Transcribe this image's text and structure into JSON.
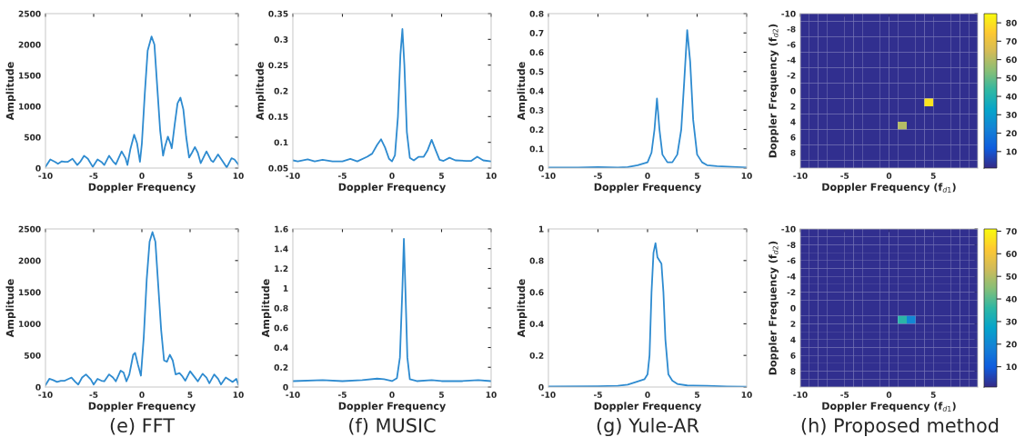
{
  "chart_data": [
    {
      "type": "line",
      "xlabel": "Doppler Frequency",
      "ylabel": "Amplitude",
      "xlim": [
        -10,
        10
      ],
      "xticks": [
        -10,
        -5,
        0,
        5,
        10
      ],
      "ylim": [
        0,
        2500
      ],
      "yticks": [
        0,
        500,
        1000,
        1500,
        2000,
        2500
      ],
      "series": [
        {
          "color": "#2e8bd0",
          "x": [
            -10,
            -9.5,
            -9,
            -8.7,
            -8.3,
            -8,
            -7.7,
            -7.2,
            -6.7,
            -6.4,
            -6,
            -5.6,
            -5.1,
            -4.6,
            -4.2,
            -3.9,
            -3.4,
            -3,
            -2.7,
            -2.1,
            -1.7,
            -1.5,
            -1.2,
            -0.8,
            -0.5,
            -0.2,
            0,
            0.3,
            0.6,
            1,
            1.3,
            1.6,
            1.9,
            2.2,
            2.4,
            2.7,
            3,
            3.1,
            3.4,
            3.7,
            4,
            4.3,
            4.6,
            4.9,
            5.2,
            5.5,
            5.8,
            6.1,
            6.7,
            7.2,
            7.4,
            7.9,
            8.3,
            8.8,
            9.3,
            9.6,
            10
          ],
          "values": [
            20,
            140,
            100,
            70,
            110,
            100,
            100,
            150,
            50,
            100,
            200,
            150,
            20,
            140,
            100,
            50,
            200,
            110,
            60,
            270,
            160,
            50,
            300,
            540,
            400,
            100,
            400,
            1200,
            1900,
            2130,
            2000,
            1300,
            600,
            200,
            350,
            510,
            380,
            320,
            700,
            1050,
            1140,
            950,
            500,
            170,
            250,
            340,
            250,
            80,
            270,
            120,
            100,
            220,
            130,
            10,
            160,
            140,
            60
          ]
        }
      ]
    },
    {
      "type": "line",
      "xlabel": "Doppler Frequency",
      "ylabel": "Amplitude",
      "xlim": [
        -10,
        10
      ],
      "xticks": [
        -10,
        -5,
        0,
        5,
        10
      ],
      "ylim": [
        0.05,
        0.35
      ],
      "yticks": [
        0.05,
        0.1,
        0.15,
        0.2,
        0.25,
        0.3,
        0.35
      ],
      "series": [
        {
          "color": "#2e8bd0",
          "x": [
            -10,
            -9.5,
            -8.5,
            -7.8,
            -7,
            -6,
            -5,
            -4.2,
            -3.5,
            -2.5,
            -2,
            -1.5,
            -1.1,
            -0.7,
            -0.3,
            0,
            0.3,
            0.6,
            0.85,
            1.05,
            1.25,
            1.5,
            1.8,
            2.2,
            2.7,
            3.2,
            3.6,
            4,
            4.4,
            4.8,
            5.2,
            5.8,
            6.4,
            7.5,
            8,
            8.6,
            9.2,
            10
          ],
          "values": [
            0.065,
            0.063,
            0.067,
            0.063,
            0.066,
            0.063,
            0.063,
            0.068,
            0.063,
            0.072,
            0.078,
            0.095,
            0.106,
            0.09,
            0.068,
            0.063,
            0.075,
            0.15,
            0.27,
            0.32,
            0.25,
            0.12,
            0.07,
            0.065,
            0.072,
            0.072,
            0.085,
            0.105,
            0.085,
            0.066,
            0.064,
            0.07,
            0.065,
            0.064,
            0.064,
            0.072,
            0.065,
            0.063
          ]
        }
      ]
    },
    {
      "type": "line",
      "xlabel": "Doppler Frequency",
      "ylabel": "Amplitude",
      "xlim": [
        -10,
        10
      ],
      "xticks": [
        -10,
        -5,
        0,
        5,
        10
      ],
      "ylim": [
        0,
        0.8
      ],
      "yticks": [
        0,
        0.1,
        0.2,
        0.3,
        0.4,
        0.5,
        0.6,
        0.7,
        0.8
      ],
      "series": [
        {
          "color": "#2e8bd0",
          "x": [
            -10,
            -7,
            -5,
            -3,
            -2,
            -1,
            0,
            0.4,
            0.7,
            0.95,
            1.2,
            1.5,
            2,
            2.5,
            3,
            3.4,
            3.7,
            4,
            4.3,
            4.6,
            5,
            5.5,
            6,
            7,
            8,
            10
          ],
          "values": [
            0.003,
            0.003,
            0.005,
            0.003,
            0.005,
            0.015,
            0.03,
            0.08,
            0.2,
            0.36,
            0.2,
            0.07,
            0.03,
            0.03,
            0.07,
            0.2,
            0.45,
            0.715,
            0.55,
            0.25,
            0.07,
            0.03,
            0.015,
            0.01,
            0.008,
            0.003
          ]
        }
      ]
    },
    {
      "type": "heatmap",
      "xlabel": "Doppler Frequency (f$_{d1}$)",
      "ylabel": "Doppler Frequency (f$_{d2}$)",
      "xlim": [
        -10,
        10
      ],
      "xticks": [
        -10,
        -5,
        0,
        5
      ],
      "ylim": [
        10,
        -10
      ],
      "yticks": [
        -10,
        -8,
        -6,
        -4,
        -2,
        0,
        2,
        4,
        6,
        8
      ],
      "clim": [
        1,
        85
      ],
      "cticks": [
        10,
        20,
        30,
        40,
        50,
        60,
        70,
        80
      ],
      "cells": [
        [
          2,
          2,
          2,
          2,
          2,
          2,
          2,
          2,
          2,
          2,
          2,
          2,
          2,
          2,
          2,
          2,
          2,
          2,
          2,
          2
        ],
        [
          2,
          2,
          2,
          2,
          2,
          2,
          2,
          2,
          2,
          2,
          2,
          2,
          2,
          2,
          2,
          2,
          2,
          2,
          2,
          2
        ],
        [
          2,
          2,
          2,
          2,
          2,
          2,
          2,
          2,
          2,
          2,
          2,
          2,
          2,
          2,
          2,
          2,
          2,
          2,
          2,
          2
        ],
        [
          2,
          2,
          2,
          2,
          2,
          2,
          2,
          2,
          2,
          2,
          2,
          2,
          2,
          2,
          2,
          2,
          2,
          2,
          2,
          2
        ],
        [
          2,
          2,
          2,
          2,
          2,
          2,
          2,
          2,
          2,
          2,
          2,
          2,
          2,
          2,
          2,
          2,
          2,
          2,
          2,
          2
        ],
        [
          2,
          2,
          2,
          2,
          2,
          2,
          2,
          2,
          2,
          2,
          2,
          2,
          2,
          2,
          2,
          2,
          2,
          2,
          2,
          2
        ],
        [
          2,
          2,
          2,
          2,
          2,
          2,
          2,
          2,
          2,
          2,
          2,
          2,
          2,
          2,
          2,
          2,
          2,
          2,
          2,
          2
        ],
        [
          2,
          2,
          2,
          2,
          2,
          2,
          2,
          2,
          2,
          2,
          2,
          2,
          2,
          2,
          2,
          2,
          2,
          2,
          2,
          2
        ],
        [
          2,
          2,
          2,
          2,
          2,
          2,
          2,
          2,
          2,
          2,
          2,
          2,
          2,
          2,
          2,
          2,
          2,
          2,
          2,
          2
        ],
        [
          2,
          2,
          2,
          2,
          2,
          2,
          2,
          2,
          2,
          2,
          2,
          2,
          2,
          2,
          2,
          2,
          2,
          2,
          2,
          2
        ],
        [
          2,
          2,
          2,
          2,
          2,
          2,
          2,
          2,
          2,
          2,
          2,
          2,
          2,
          2,
          2,
          2,
          2,
          2,
          2,
          2
        ],
        [
          2,
          2,
          2,
          2,
          2,
          2,
          2,
          2,
          2,
          2,
          2,
          2,
          2,
          2,
          80,
          2,
          2,
          2,
          2,
          2
        ],
        [
          2,
          2,
          2,
          2,
          2,
          2,
          2,
          2,
          2,
          2,
          2,
          2,
          2,
          2,
          2,
          2,
          2,
          2,
          2,
          2
        ],
        [
          2,
          2,
          2,
          2,
          2,
          2,
          2,
          2,
          2,
          2,
          2,
          2,
          2,
          2,
          2,
          2,
          2,
          2,
          2,
          2
        ],
        [
          2,
          2,
          2,
          2,
          2,
          2,
          2,
          2,
          2,
          2,
          2,
          60,
          2,
          2,
          2,
          2,
          2,
          2,
          2,
          2
        ],
        [
          2,
          2,
          2,
          2,
          2,
          2,
          2,
          2,
          2,
          2,
          2,
          2,
          2,
          2,
          2,
          2,
          2,
          2,
          2,
          2
        ],
        [
          2,
          2,
          2,
          2,
          2,
          2,
          2,
          2,
          2,
          2,
          2,
          2,
          2,
          2,
          2,
          2,
          2,
          2,
          2,
          2
        ],
        [
          2,
          2,
          2,
          2,
          2,
          2,
          2,
          2,
          2,
          2,
          2,
          2,
          2,
          2,
          2,
          2,
          2,
          2,
          2,
          2
        ],
        [
          2,
          2,
          2,
          2,
          2,
          2,
          2,
          2,
          2,
          2,
          2,
          2,
          2,
          2,
          2,
          2,
          2,
          2,
          2,
          2
        ],
        [
          2,
          2,
          2,
          2,
          2,
          2,
          2,
          2,
          2,
          2,
          2,
          2,
          2,
          2,
          2,
          2,
          2,
          2,
          2,
          2
        ]
      ]
    },
    {
      "type": "line",
      "xlabel": "Doppler Frequency",
      "ylabel": "Amplitude",
      "xlim": [
        -10,
        10
      ],
      "xticks": [
        -10,
        -5,
        0,
        5,
        10
      ],
      "ylim": [
        0,
        2500
      ],
      "yticks": [
        0,
        500,
        1000,
        1500,
        2000,
        2500
      ],
      "annotations": [
        "(e) FFT"
      ],
      "series": [
        {
          "color": "#2e8bd0",
          "x": [
            -10,
            -9.6,
            -9.2,
            -8.8,
            -8.4,
            -8,
            -7.6,
            -7.3,
            -6.9,
            -6.6,
            -6.2,
            -5.8,
            -5.3,
            -5,
            -4.6,
            -4.2,
            -3.9,
            -3.4,
            -3,
            -2.7,
            -2.2,
            -1.9,
            -1.6,
            -1.3,
            -0.9,
            -0.7,
            -0.4,
            -0.1,
            0.2,
            0.5,
            0.8,
            1.1,
            1.4,
            1.7,
            2,
            2.3,
            2.6,
            2.9,
            3.2,
            3.5,
            3.9,
            4.2,
            4.5,
            5,
            5.4,
            5.8,
            6.3,
            6.7,
            7,
            7.5,
            7.9,
            8.2,
            8.7,
            9.1,
            9.4,
            9.8,
            10
          ],
          "values": [
            30,
            130,
            110,
            80,
            100,
            100,
            130,
            150,
            80,
            40,
            150,
            200,
            120,
            40,
            130,
            100,
            90,
            200,
            150,
            90,
            260,
            230,
            90,
            200,
            510,
            540,
            350,
            180,
            800,
            1700,
            2300,
            2450,
            2300,
            1600,
            900,
            420,
            400,
            510,
            420,
            200,
            220,
            170,
            100,
            250,
            170,
            90,
            210,
            150,
            60,
            200,
            130,
            40,
            150,
            110,
            80,
            130,
            40
          ]
        }
      ]
    },
    {
      "type": "line",
      "xlabel": "Doppler Frequency",
      "ylabel": "Amplitude",
      "xlim": [
        -10,
        10
      ],
      "xticks": [
        -10,
        -5,
        0,
        5,
        10
      ],
      "ylim": [
        0,
        1.6
      ],
      "yticks": [
        0,
        0.2,
        0.4,
        0.6,
        0.8,
        1,
        1.2,
        1.4,
        1.6
      ],
      "annotations": [
        "(f) MUSIC"
      ],
      "series": [
        {
          "color": "#2e8bd0",
          "x": [
            -10,
            -7,
            -5,
            -3,
            -1.5,
            -0.8,
            0,
            0.5,
            0.8,
            1.05,
            1.2,
            1.35,
            1.55,
            1.8,
            2.5,
            4,
            5,
            7,
            8.7,
            10
          ],
          "values": [
            0.06,
            0.07,
            0.06,
            0.07,
            0.085,
            0.08,
            0.06,
            0.09,
            0.3,
            1.0,
            1.5,
            1.0,
            0.3,
            0.08,
            0.06,
            0.07,
            0.06,
            0.06,
            0.07,
            0.06
          ]
        }
      ]
    },
    {
      "type": "line",
      "xlabel": "Doppler Frequency",
      "ylabel": "Amplitude",
      "xlim": [
        -10,
        10
      ],
      "xticks": [
        -10,
        -5,
        0,
        5,
        10
      ],
      "ylim": [
        0,
        1
      ],
      "yticks": [
        0,
        0.2,
        0.4,
        0.6,
        0.8,
        1
      ],
      "annotations": [
        "(g) Yule-AR"
      ],
      "series": [
        {
          "color": "#2e8bd0",
          "x": [
            -10,
            -5,
            -3,
            -2,
            -1.5,
            -1,
            -0.3,
            0,
            0.2,
            0.4,
            0.6,
            0.8,
            1,
            1.2,
            1.4,
            1.6,
            1.8,
            2.1,
            2.5,
            3,
            4,
            6,
            8,
            10
          ],
          "values": [
            0.003,
            0.005,
            0.008,
            0.015,
            0.025,
            0.035,
            0.05,
            0.08,
            0.2,
            0.6,
            0.85,
            0.91,
            0.82,
            0.8,
            0.78,
            0.6,
            0.3,
            0.08,
            0.04,
            0.02,
            0.01,
            0.008,
            0.004,
            0.002
          ]
        }
      ]
    },
    {
      "type": "heatmap",
      "xlabel": "Doppler Frequency (f$_{d1}$)",
      "ylabel": "Doppler Frequency (f$_{d2}$)",
      "xlim": [
        -10,
        10
      ],
      "xticks": [
        -10,
        -5,
        0,
        5
      ],
      "ylim": [
        10,
        -10
      ],
      "yticks": [
        -10,
        -8,
        -6,
        -4,
        -2,
        0,
        2,
        4,
        6,
        8
      ],
      "clim": [
        1,
        71
      ],
      "cticks": [
        10,
        20,
        30,
        40,
        50,
        60,
        70
      ],
      "annotations": [
        "(h) Proposed method"
      ],
      "cells": [
        [
          2,
          2,
          2,
          2,
          2,
          2,
          2,
          2,
          2,
          2,
          2,
          2,
          2,
          2,
          2,
          2,
          2,
          2,
          2,
          2
        ],
        [
          2,
          2,
          2,
          2,
          2,
          2,
          2,
          2,
          2,
          2,
          2,
          2,
          2,
          2,
          2,
          2,
          2,
          2,
          2,
          2
        ],
        [
          2,
          2,
          2,
          2,
          2,
          2,
          2,
          2,
          2,
          2,
          2,
          2,
          2,
          2,
          2,
          2,
          2,
          2,
          2,
          2
        ],
        [
          2,
          2,
          2,
          2,
          2,
          2,
          2,
          2,
          2,
          2,
          2,
          2,
          2,
          2,
          2,
          2,
          2,
          2,
          2,
          2
        ],
        [
          2,
          2,
          2,
          2,
          2,
          2,
          2,
          2,
          2,
          2,
          2,
          2,
          2,
          2,
          2,
          2,
          2,
          2,
          2,
          2
        ],
        [
          2,
          2,
          2,
          2,
          2,
          2,
          2,
          2,
          2,
          2,
          2,
          2,
          2,
          2,
          2,
          2,
          2,
          2,
          2,
          2
        ],
        [
          2,
          2,
          2,
          2,
          2,
          2,
          2,
          2,
          2,
          2,
          2,
          2,
          2,
          2,
          2,
          2,
          2,
          2,
          2,
          2
        ],
        [
          2,
          2,
          2,
          2,
          2,
          2,
          2,
          2,
          2,
          2,
          2,
          2,
          2,
          2,
          2,
          2,
          2,
          2,
          2,
          2
        ],
        [
          2,
          2,
          2,
          2,
          2,
          2,
          2,
          2,
          2,
          2,
          2,
          2,
          2,
          2,
          2,
          2,
          2,
          2,
          2,
          2
        ],
        [
          2,
          2,
          2,
          2,
          2,
          2,
          2,
          2,
          2,
          2,
          2,
          2,
          2,
          2,
          2,
          2,
          2,
          2,
          2,
          2
        ],
        [
          2,
          2,
          2,
          2,
          2,
          2,
          2,
          2,
          2,
          2,
          2,
          2,
          2,
          2,
          2,
          2,
          2,
          2,
          2,
          2
        ],
        [
          2,
          2,
          2,
          2,
          2,
          2,
          2,
          2,
          2,
          2,
          2,
          35,
          20,
          2,
          2,
          2,
          2,
          2,
          2,
          2
        ],
        [
          2,
          2,
          2,
          2,
          2,
          2,
          2,
          2,
          2,
          2,
          2,
          2,
          2,
          2,
          2,
          2,
          2,
          2,
          2,
          2
        ],
        [
          2,
          2,
          2,
          2,
          2,
          2,
          2,
          2,
          2,
          2,
          2,
          2,
          2,
          2,
          2,
          2,
          2,
          2,
          2,
          2
        ],
        [
          2,
          2,
          2,
          2,
          2,
          2,
          2,
          2,
          2,
          2,
          2,
          2,
          2,
          2,
          2,
          2,
          2,
          2,
          2,
          2
        ],
        [
          2,
          2,
          2,
          2,
          2,
          2,
          2,
          2,
          2,
          2,
          2,
          2,
          2,
          2,
          2,
          2,
          2,
          2,
          2,
          2
        ],
        [
          2,
          2,
          2,
          2,
          2,
          2,
          2,
          2,
          2,
          2,
          2,
          2,
          2,
          2,
          2,
          2,
          2,
          2,
          2,
          2
        ],
        [
          2,
          2,
          2,
          2,
          2,
          2,
          2,
          2,
          2,
          2,
          2,
          2,
          2,
          2,
          2,
          2,
          2,
          2,
          2,
          2
        ],
        [
          2,
          2,
          2,
          2,
          2,
          2,
          2,
          2,
          2,
          2,
          2,
          2,
          2,
          2,
          2,
          2,
          2,
          2,
          2,
          2
        ],
        [
          2,
          2,
          2,
          2,
          2,
          2,
          2,
          2,
          2,
          2,
          2,
          2,
          2,
          2,
          2,
          2,
          2,
          2,
          2,
          2
        ]
      ]
    }
  ]
}
